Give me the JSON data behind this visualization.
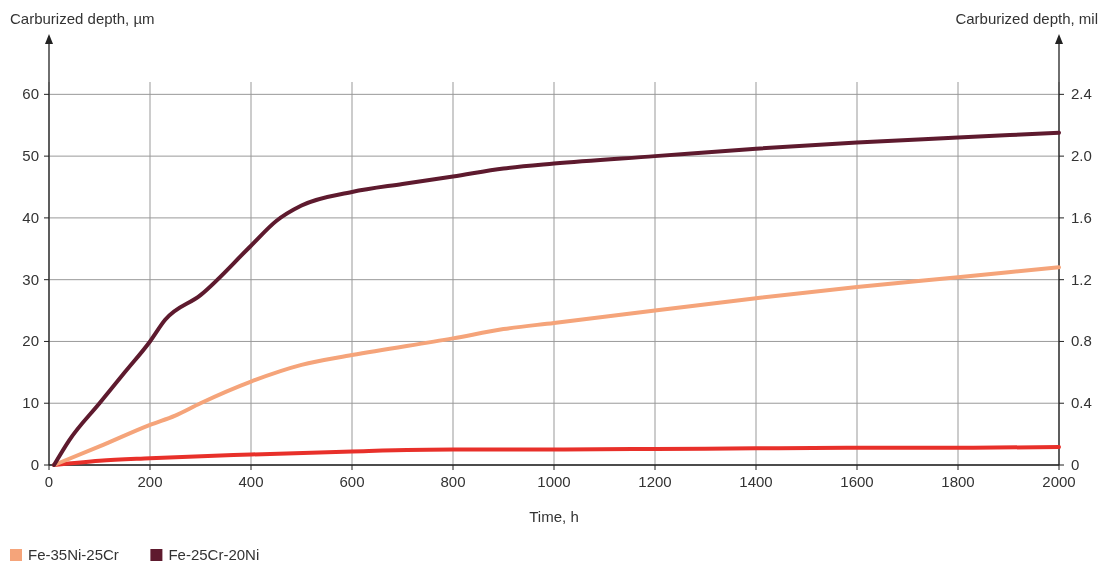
{
  "chart_data": {
    "type": "line",
    "xlabel": "Time, h",
    "ylabel": "Carburized depth, µm",
    "y2label": "Carburized depth, mil",
    "xlim": [
      0,
      2000
    ],
    "xticks": [
      0,
      200,
      400,
      600,
      800,
      1000,
      1200,
      1400,
      1600,
      1800,
      2000
    ],
    "ylim": [
      0,
      62
    ],
    "yticks": [
      0,
      10,
      20,
      30,
      40,
      50,
      60
    ],
    "y2lim": [
      0,
      2.48
    ],
    "y2ticks": [
      0,
      0.4,
      0.8,
      1.2,
      1.6,
      {
        "value": 2,
        "label": "2.0"
      },
      2.4
    ],
    "grid": true,
    "legend": "bottom left",
    "line_style": "solid",
    "marker": "none",
    "series": [
      {
        "color": "#e8302a",
        "x": [
          10,
          100,
          200,
          400,
          600,
          800,
          1000,
          1200,
          1400,
          1600,
          1800,
          2000
        ],
        "values": [
          0,
          0.7,
          1.1,
          1.7,
          2.2,
          2.5,
          2.5,
          2.6,
          2.7,
          2.8,
          2.8,
          2.9
        ]
      },
      {
        "name": "Fe-35Ni-25Cr",
        "color": "#f5a47a",
        "x": [
          10,
          100,
          200,
          250,
          300,
          400,
          500,
          600,
          800,
          900,
          1000,
          1200,
          1400,
          1600,
          1800,
          2000
        ],
        "values": [
          0,
          3,
          6.5,
          8,
          10,
          13.5,
          16.2,
          17.8,
          20.5,
          22,
          23,
          25,
          27,
          28.8,
          30.4,
          32
        ]
      },
      {
        "name": "Fe-25Cr-20Ni",
        "color": "#5e1a2e",
        "x": [
          10,
          40,
          100,
          150,
          200,
          230,
          300,
          400,
          450,
          500,
          600,
          700,
          800,
          900,
          1000,
          1200,
          1400,
          1600,
          1800,
          2000
        ],
        "values": [
          0,
          4,
          10,
          15,
          20,
          23.5,
          27.5,
          35.5,
          39.5,
          42,
          44.2,
          45.5,
          46.7,
          48,
          48.8,
          50,
          51.2,
          52.2,
          53,
          53.8
        ]
      }
    ]
  }
}
